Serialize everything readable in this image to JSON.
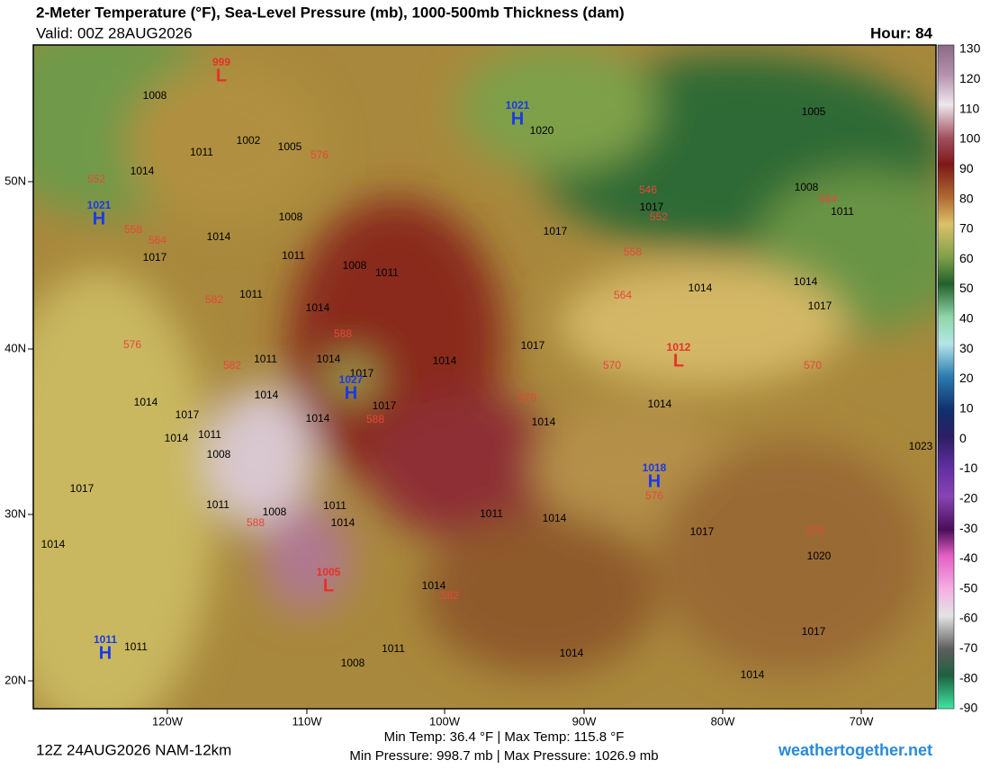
{
  "header": {
    "title": "2-Meter Temperature (°F), Sea-Level Pressure (mb), 1000-500mb Thickness (dam)",
    "valid": "Valid: 00Z 28AUG2026",
    "hour": "Hour: 84"
  },
  "colorbar": {
    "ticks": [
      130,
      120,
      110,
      100,
      90,
      80,
      70,
      60,
      50,
      40,
      30,
      20,
      10,
      0,
      -10,
      -20,
      -30,
      -40,
      -50,
      -60,
      -70,
      -80,
      -90
    ]
  },
  "lat_labels": [
    "50N",
    "40N",
    "30N",
    "20N"
  ],
  "lon_labels": [
    "120W",
    "110W",
    "100W",
    "90W",
    "80W",
    "70W"
  ],
  "centers": [
    {
      "symbol": "L",
      "value": "999"
    },
    {
      "symbol": "H",
      "value": "1021"
    },
    {
      "symbol": "H",
      "value": "1021"
    },
    {
      "symbol": "H",
      "value": "1027"
    },
    {
      "symbol": "L",
      "value": "1012"
    },
    {
      "symbol": "H",
      "value": "1018"
    },
    {
      "symbol": "L",
      "value": "1005"
    },
    {
      "symbol": "H",
      "value": "1011"
    }
  ],
  "isobar_labels": [
    "1008",
    "1002",
    "1005",
    "1011",
    "1014",
    "1008",
    "1014",
    "1017",
    "1011",
    "1008",
    "1011",
    "1011",
    "1014",
    "1011",
    "1014",
    "1017",
    "1014",
    "1014",
    "1017",
    "1011",
    "1014",
    "1008",
    "1014",
    "1017",
    "1014",
    "1017",
    "1014",
    "1014",
    "1014",
    "1017",
    "1014",
    "1017",
    "1017",
    "1020",
    "1005",
    "1008",
    "1011",
    "1023",
    "1017",
    "1011",
    "1008",
    "1011",
    "1014",
    "1011",
    "1014",
    "1017",
    "1020",
    "1014",
    "1014",
    "1011",
    "1008",
    "1014",
    "1014",
    "1017",
    "1011"
  ],
  "thickness_labels": [
    "552",
    "558",
    "564",
    "576",
    "582",
    "576",
    "588",
    "582",
    "588",
    "576",
    "546",
    "552",
    "558",
    "564",
    "570",
    "570",
    "564",
    "576",
    "576",
    "582",
    "588"
  ],
  "footer": {
    "run": "12Z 24AUG2026 NAM-12km",
    "temps": "Min Temp:  36.4 °F | Max Temp: 115.8 °F",
    "pressures": "Min Pressure: 998.7 mb | Max Pressure: 1026.9 mb",
    "site": "weathertogether.net"
  }
}
